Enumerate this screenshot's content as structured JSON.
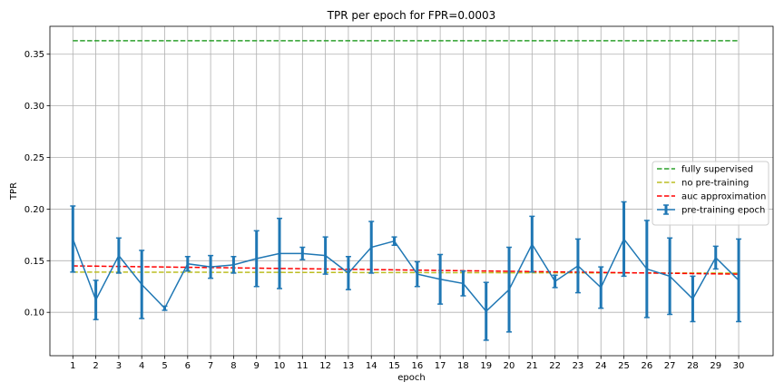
{
  "chart_data": {
    "type": "line",
    "title": "TPR per epoch for FPR=0.0003",
    "xlabel": "epoch",
    "ylabel": "TPR",
    "xlim": [
      0,
      31.5
    ],
    "ylim": [
      0.058,
      0.377
    ],
    "x_ticks": [
      1,
      2,
      3,
      4,
      5,
      6,
      7,
      8,
      9,
      10,
      11,
      12,
      13,
      14,
      15,
      16,
      17,
      18,
      19,
      20,
      21,
      22,
      23,
      24,
      25,
      26,
      27,
      28,
      29,
      30
    ],
    "x_tick_labels": [
      "1",
      "2",
      "3",
      "4",
      "5",
      "6",
      "7",
      "8",
      "9",
      "10",
      "11",
      "12",
      "13",
      "14",
      "15",
      "16",
      "17",
      "18",
      "19",
      "20",
      "21",
      "22",
      "23",
      "24",
      "25",
      "26",
      "27",
      "28",
      "29",
      "30"
    ],
    "y_ticks": [
      0.1,
      0.15,
      0.2,
      0.25,
      0.3,
      0.35
    ],
    "y_tick_labels": [
      "0.10",
      "0.15",
      "0.20",
      "0.25",
      "0.30",
      "0.35"
    ],
    "grid": true,
    "legend_position": "center-right",
    "series": [
      {
        "name": "fully supervised",
        "style": "dashed",
        "color": "#2ca02c",
        "x": [
          1,
          30
        ],
        "values": [
          0.363,
          0.363
        ]
      },
      {
        "name": "no pre-training",
        "style": "dashed",
        "color": "#bcbd22",
        "x": [
          1,
          30
        ],
        "values": [
          0.139,
          0.138
        ]
      },
      {
        "name": "auc approximation",
        "style": "dashed",
        "color": "#ff0000",
        "x": [
          1,
          30
        ],
        "values": [
          0.145,
          0.137
        ]
      },
      {
        "name": "pre-training epoch",
        "style": "errorbar",
        "color": "#1f77b4",
        "x": [
          1,
          2,
          3,
          4,
          5,
          6,
          7,
          8,
          9,
          10,
          11,
          12,
          13,
          14,
          15,
          16,
          17,
          18,
          19,
          20,
          21,
          22,
          23,
          24,
          25,
          26,
          27,
          28,
          29,
          30
        ],
        "values": [
          0.171,
          0.112,
          0.155,
          0.127,
          0.104,
          0.147,
          0.144,
          0.146,
          0.152,
          0.157,
          0.157,
          0.155,
          0.138,
          0.163,
          0.169,
          0.137,
          0.132,
          0.128,
          0.101,
          0.122,
          0.166,
          0.13,
          0.145,
          0.124,
          0.171,
          0.142,
          0.135,
          0.113,
          0.153,
          0.131
        ],
        "errors": [
          0.032,
          0.019,
          0.017,
          0.033,
          0.002,
          0.007,
          0.011,
          0.008,
          0.027,
          0.034,
          0.006,
          0.018,
          0.016,
          0.025,
          0.004,
          0.012,
          0.024,
          0.012,
          0.028,
          0.041,
          0.027,
          0.006,
          0.026,
          0.02,
          0.036,
          0.047,
          0.037,
          0.022,
          0.011,
          0.04
        ]
      }
    ]
  }
}
